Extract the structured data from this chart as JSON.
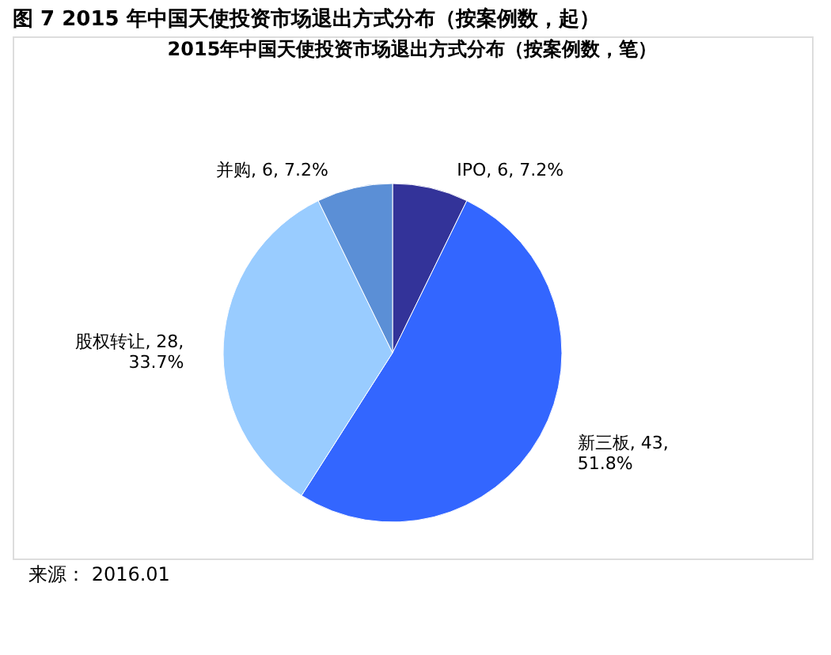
{
  "chart_data": {
    "type": "pie",
    "title": "图 7 2015 年中国天使投资市场退出方式分布（按案例数，起）",
    "subtitle": "2015年中国天使投资市场退出方式分布（按案例数，笔）",
    "categories": [
      "IPO, 6, 7.2%",
      "新三板, 43,\n51.8%",
      "股权转让, 28,\n33.7%",
      "并购, 6, 7.2%"
    ],
    "values": [
      6,
      43,
      28,
      6
    ],
    "colors": [
      "#333399",
      "#3366ff",
      "#99ccff",
      "#5b8fd6"
    ],
    "annotations": [
      "来源： 2016.01"
    ],
    "legend": false
  }
}
